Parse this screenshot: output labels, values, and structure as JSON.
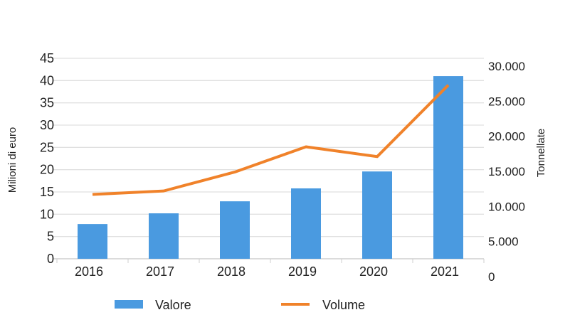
{
  "chart_data": {
    "type": "bar",
    "categories": [
      "2016",
      "2017",
      "2018",
      "2019",
      "2020",
      "2021"
    ],
    "series": [
      {
        "name": "Valore",
        "type": "bar",
        "axis": "left",
        "color": "#4a9ae0",
        "values": [
          7.8,
          10.2,
          12.9,
          15.8,
          19.6,
          41.0
        ]
      },
      {
        "name": "Volume",
        "type": "line",
        "axis": "right",
        "color": "#f0822a",
        "values": [
          11700,
          12200,
          14900,
          18500,
          17100,
          27300
        ]
      }
    ],
    "ylabel": "Milioni di euro",
    "ylabel_right": "Tonnellate",
    "ylim": [
      0,
      45
    ],
    "ylim_right": [
      0,
      30000
    ],
    "yticks": [
      "0",
      "5",
      "10",
      "15",
      "20",
      "25",
      "30",
      "35",
      "40",
      "45"
    ],
    "yticks_right": [
      "0",
      "5.000",
      "10.000",
      "15.000",
      "20.000",
      "25.000",
      "30.000"
    ],
    "grid": true,
    "legend_position": "bottom"
  }
}
